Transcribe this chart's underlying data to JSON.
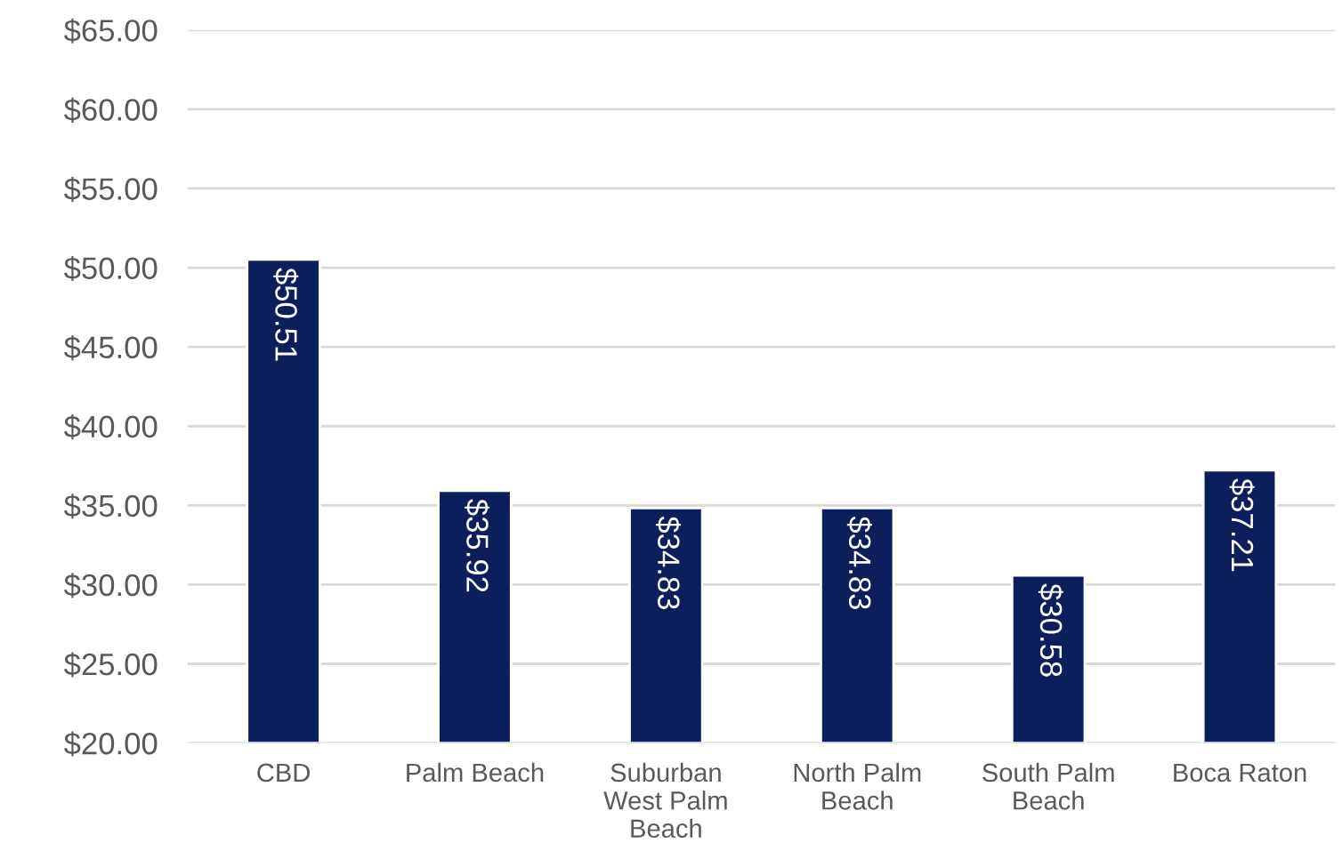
{
  "chart_data": {
    "type": "bar",
    "categories": [
      "CBD",
      "Palm Beach",
      "Suburban\nWest Palm\nBeach",
      "North Palm\nBeach",
      "South Palm\nBeach",
      "Boca Raton"
    ],
    "values": [
      50.51,
      35.92,
      34.83,
      34.83,
      30.58,
      37.21
    ],
    "value_labels": [
      "$50.51",
      "$35.92",
      "$34.83",
      "$34.83",
      "$30.58",
      "$37.21"
    ],
    "color": "#0b1f5c",
    "ylim": [
      20,
      65
    ],
    "yticks": [
      {
        "value": 20,
        "label": "$20.00"
      },
      {
        "value": 25,
        "label": "$25.00"
      },
      {
        "value": 30,
        "label": "$30.00"
      },
      {
        "value": 35,
        "label": "$35.00"
      },
      {
        "value": 40,
        "label": "$40.00"
      },
      {
        "value": 45,
        "label": "$45.00"
      },
      {
        "value": 50,
        "label": "$50.00"
      },
      {
        "value": 55,
        "label": "$55.00"
      },
      {
        "value": 60,
        "label": "$60.00"
      },
      {
        "value": 65,
        "label": "$65.00"
      }
    ],
    "grid": "y",
    "legend": false
  }
}
